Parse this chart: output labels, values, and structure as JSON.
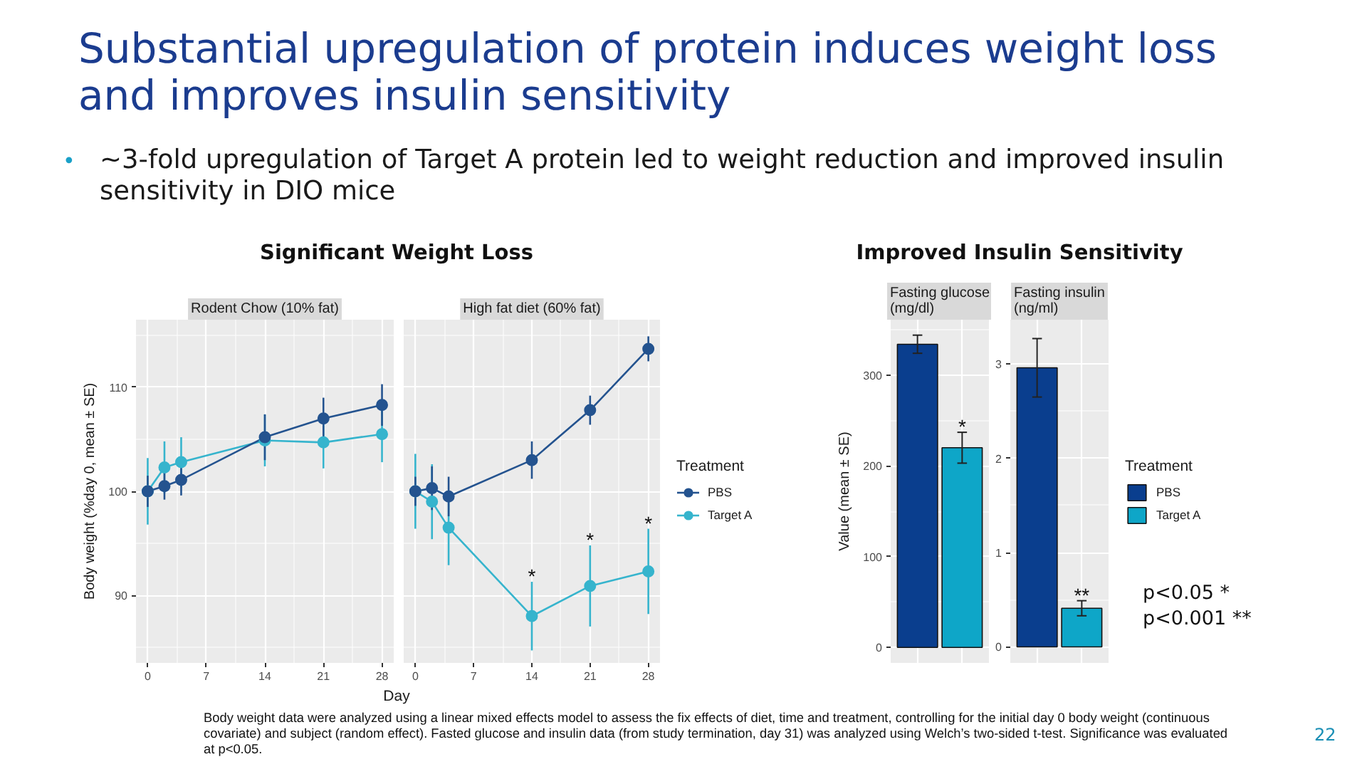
{
  "chart_data": [
    {
      "type": "line",
      "title": "Rodent Chow (10% fat)",
      "xlabel": "Day",
      "ylabel": "Body weight (%day 0, mean ± SE)",
      "x": [
        0,
        2,
        4,
        14,
        21,
        28
      ],
      "xlim": [
        -1.4,
        29.4
      ],
      "xticks": [
        0,
        7,
        14,
        21,
        28
      ],
      "ylim": [
        83.5,
        116.5
      ],
      "yticks": [
        90,
        100,
        110
      ],
      "series": [
        {
          "color": "#24538f",
          "values": [
            100,
            100.5,
            101.1,
            105.2,
            107.0,
            108.3
          ],
          "errors": [
            1.5,
            1.3,
            1.5,
            2.2,
            2.0,
            2.0
          ]
        },
        {
          "color": "#36b4cd",
          "values": [
            100,
            102.3,
            102.8,
            104.9,
            104.7,
            105.5
          ],
          "errors": [
            3.2,
            2.5,
            2.4,
            2.5,
            2.5,
            2.7
          ]
        }
      ],
      "marker": "circle",
      "line_style": "solid",
      "grid": true,
      "annotations": [
        "Substantial upregulation of protein induces weight loss and improves insulin sensitivity",
        "•",
        "~3-fold upregulation of Target A protein led to weight reduction and improved insulin sensitivity in DIO mice",
        "Significant Weight Loss",
        "Body weight data were analyzed using a linear mixed effects model to assess the fix effects of diet, time and treatment, controlling for the initial day 0 body weight (continuous covariate) and subject (random effect). Fasted glucose and insulin data (from study termination, day 31) was analyzed using Welch’s two-sided t-test. Significance was evaluated at p<0.05.",
        "22"
      ]
    },
    {
      "type": "line",
      "title": "High fat diet (60% fat)",
      "x": [
        0,
        2,
        4,
        14,
        21,
        28
      ],
      "xlim": [
        -1.4,
        29.4
      ],
      "xticks": [
        0,
        7,
        14,
        21,
        28
      ],
      "ylim": [
        83.5,
        116.5
      ],
      "yticks": [
        90,
        100,
        110
      ],
      "tick_labels": "x",
      "series": [
        {
          "name": "PBS",
          "color": "#24538f",
          "values": [
            100,
            100.3,
            99.5,
            103.0,
            107.8,
            113.7
          ],
          "errors": [
            1.4,
            2.1,
            1.9,
            1.8,
            1.4,
            1.2
          ]
        },
        {
          "name": "Target A",
          "color": "#36b4cd",
          "values": [
            100,
            99.0,
            96.5,
            88.0,
            90.9,
            92.3
          ],
          "errors": [
            3.6,
            3.6,
            3.6,
            3.3,
            3.9,
            4.1
          ]
        }
      ],
      "marker": "circle",
      "line_style": "solid",
      "grid": true,
      "legend": "right",
      "legend_title": "Treatment",
      "annotations": [
        {
          "text": "*",
          "x": 14,
          "y": 88.0
        },
        {
          "text": "*",
          "x": 21,
          "y": 90.9
        },
        {
          "text": "*",
          "x": 28,
          "y": 92.3
        }
      ]
    },
    {
      "type": "bar",
      "title": "Fasting glucose (mg/dl)",
      "ylabel": "Value (mean ± SE)",
      "categories": [
        null,
        null
      ],
      "ylim": [
        -17,
        361
      ],
      "yticks": [
        0,
        100,
        200,
        300
      ],
      "series": [
        {
          "color": "#0a3e8e",
          "values": [
            334,
            null
          ],
          "errors": [
            10,
            null
          ]
        },
        {
          "color": "#0ea6c8",
          "values": [
            null,
            220
          ],
          "errors": [
            null,
            17
          ]
        }
      ],
      "grid": true,
      "annotations": [
        "Improved Insulin Sensitivity",
        {
          "text": "*",
          "y": 220
        }
      ]
    },
    {
      "type": "bar",
      "title": "Fasting insulin (ng/ml)",
      "categories": [
        null,
        null
      ],
      "ylim": [
        -0.17,
        3.47
      ],
      "yticks": [
        0,
        1,
        2,
        3
      ],
      "series": [
        {
          "name": "PBS",
          "color": "#0a3e8e",
          "values": [
            2.96,
            null
          ],
          "errors": [
            0.31,
            null
          ]
        },
        {
          "name": "Target A",
          "color": "#0ea6c8",
          "values": [
            null,
            0.41
          ],
          "errors": [
            null,
            0.08
          ]
        }
      ],
      "grid": true,
      "legend": "right",
      "legend_title": "Treatment",
      "annotations": [
        {
          "text": "**",
          "y": 0.41
        },
        "p<0.05 *",
        "p<0.001 **"
      ]
    }
  ]
}
